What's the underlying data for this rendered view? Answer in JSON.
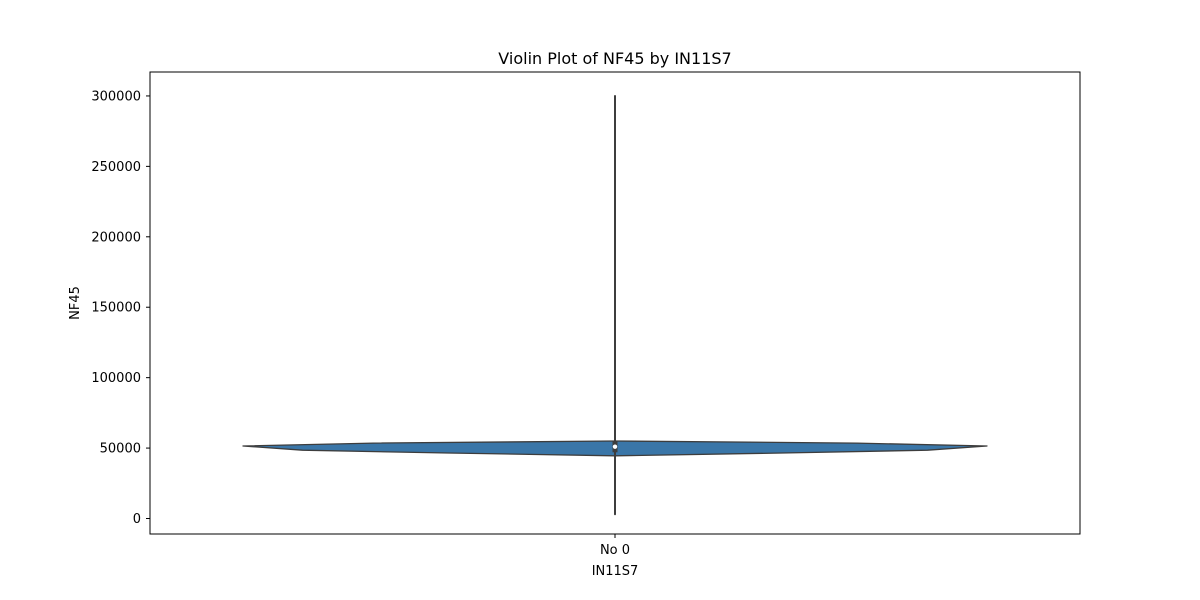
{
  "chart_data": {
    "type": "violin",
    "title": "Violin Plot of NF45 by IN11S7",
    "xlabel": "IN11S7",
    "ylabel": "NF45",
    "categories": [
      "No 0"
    ],
    "ylim": [
      -11000,
      317000
    ],
    "yticks": [
      0,
      50000,
      100000,
      150000,
      200000,
      250000,
      300000
    ],
    "ytick_labels": [
      "0",
      "50000",
      "100000",
      "150000",
      "200000",
      "250000",
      "300000"
    ],
    "grid": false,
    "legend": "none",
    "violin_color": "#3a76a8",
    "edge_color": "#3d3d3d",
    "violins": [
      {
        "category": "No 0",
        "data_min": 3000,
        "data_max": 300000,
        "q1": 47000,
        "median": 51000,
        "q3": 55000,
        "whisker_low": 3000,
        "whisker_high": 300000,
        "density": [
          {
            "y": 44500,
            "w": 0.0
          },
          {
            "y": 46500,
            "w": 0.45
          },
          {
            "y": 48500,
            "w": 0.84
          },
          {
            "y": 51500,
            "w": 1.0
          },
          {
            "y": 53500,
            "w": 0.65
          },
          {
            "y": 55000,
            "w": 0.0
          }
        ]
      }
    ]
  }
}
